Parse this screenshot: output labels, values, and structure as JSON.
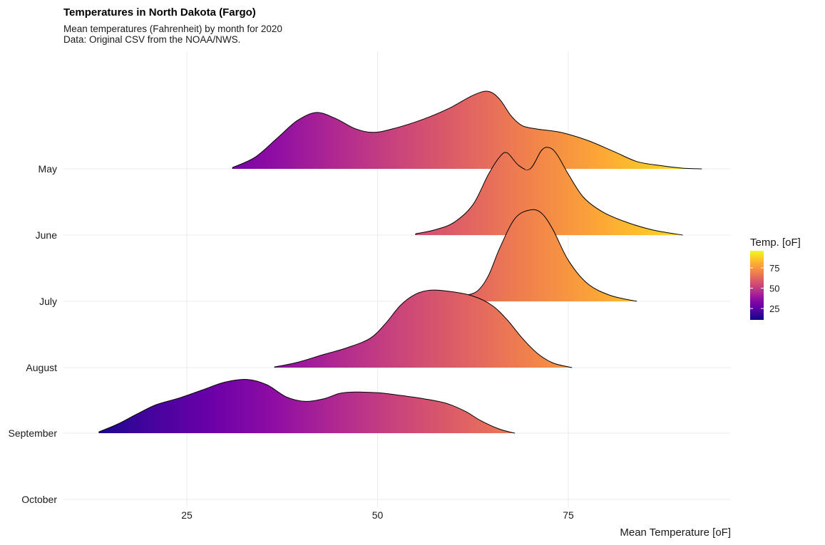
{
  "chart_data": {
    "type": "ridgeline",
    "title": "Temperatures in North Dakota (Fargo)",
    "subtitle_lines": [
      "Mean temperatures (Fahrenheit) by month for 2020",
      "Data: Original CSV from the NOAA/NWS."
    ],
    "xlabel": "Mean Temperature [oF]",
    "ylabel": "",
    "xlim": [
      2,
      79.5
    ],
    "x_ticks": [
      25,
      50,
      75
    ],
    "x_tick_labels": [
      "25",
      "50",
      "75"
    ],
    "grid": true,
    "legend": {
      "title": "Temp. [oF]",
      "ticks": [
        25,
        50,
        75
      ],
      "tick_labels": [
        "25",
        "50",
        "75"
      ],
      "range": [
        11,
        96
      ],
      "palette": "plasma",
      "placement": "right"
    },
    "series": [
      {
        "name": "May",
        "x": [
          31.0,
          34.0,
          37.0,
          39.5,
          42.0,
          44.5,
          47.0,
          49.5,
          52.5,
          56.0,
          59.5,
          62.5,
          64.5,
          66.0,
          67.5,
          69.0,
          71.0,
          74.0,
          77.5,
          81.0,
          84.0,
          87.0,
          90.0,
          92.5
        ],
        "density": [
          0.02,
          0.18,
          0.48,
          0.73,
          0.85,
          0.76,
          0.61,
          0.55,
          0.62,
          0.75,
          0.92,
          1.11,
          1.17,
          1.05,
          0.8,
          0.65,
          0.6,
          0.55,
          0.43,
          0.26,
          0.11,
          0.05,
          0.01,
          0.0
        ]
      },
      {
        "name": "June",
        "x": [
          55.0,
          57.5,
          60.0,
          62.5,
          64.5,
          66.0,
          67.0,
          68.5,
          70.0,
          71.5,
          72.5,
          73.5,
          75.0,
          77.0,
          79.5,
          82.5,
          86.0,
          90.0
        ],
        "density": [
          0.02,
          0.08,
          0.19,
          0.46,
          0.91,
          1.18,
          1.24,
          1.05,
          1.0,
          1.28,
          1.32,
          1.22,
          0.92,
          0.57,
          0.35,
          0.2,
          0.08,
          0.0
        ]
      },
      {
        "name": "July",
        "x": [
          58.5,
          61.0,
          63.0,
          64.5,
          66.0,
          68.0,
          70.0,
          71.5,
          73.0,
          75.0,
          77.5,
          80.5,
          84.0
        ],
        "density": [
          0.02,
          0.08,
          0.15,
          0.38,
          0.8,
          1.25,
          1.38,
          1.33,
          1.08,
          0.62,
          0.27,
          0.09,
          0.0
        ]
      },
      {
        "name": "August",
        "x": [
          36.5,
          39.5,
          43.0,
          46.0,
          49.0,
          51.0,
          53.0,
          55.0,
          57.0,
          59.5,
          62.5,
          65.0,
          67.0,
          69.0,
          71.0,
          73.0,
          75.5
        ],
        "density": [
          0.01,
          0.08,
          0.2,
          0.3,
          0.44,
          0.66,
          0.94,
          1.11,
          1.17,
          1.15,
          1.08,
          0.94,
          0.72,
          0.44,
          0.21,
          0.07,
          0.0
        ]
      },
      {
        "name": "September",
        "x": [
          13.5,
          16.0,
          18.5,
          21.0,
          24.0,
          27.0,
          30.0,
          33.0,
          35.5,
          38.0,
          40.5,
          43.0,
          45.0,
          47.0,
          50.0,
          53.0,
          56.0,
          59.0,
          61.5,
          63.5,
          66.0,
          68.0
        ],
        "density": [
          0.02,
          0.14,
          0.29,
          0.43,
          0.53,
          0.65,
          0.77,
          0.81,
          0.73,
          0.55,
          0.48,
          0.52,
          0.6,
          0.62,
          0.61,
          0.57,
          0.52,
          0.45,
          0.33,
          0.19,
          0.06,
          0.0
        ]
      },
      {
        "name": "October",
        "x": [],
        "density": []
      }
    ],
    "categories": [
      "May",
      "June",
      "July",
      "August",
      "September",
      "October"
    ]
  }
}
